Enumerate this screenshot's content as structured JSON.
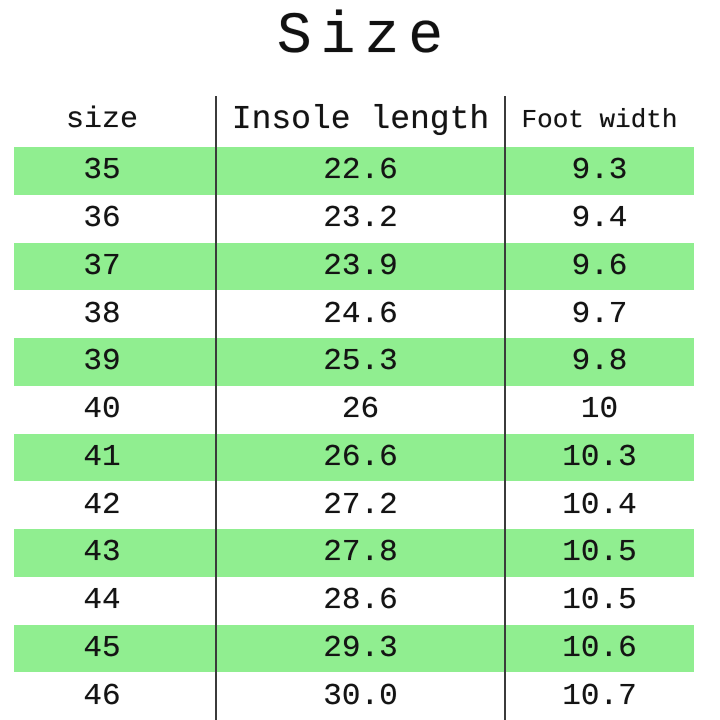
{
  "title": "Size",
  "header": {
    "size_label": "size",
    "insole_label": "Insole length",
    "foot_label": "Foot width"
  },
  "rows": [
    {
      "size": "35",
      "insole": "22.6",
      "foot": "9.3",
      "highlight": true
    },
    {
      "size": "36",
      "insole": "23.2",
      "foot": "9.4",
      "highlight": false
    },
    {
      "size": "37",
      "insole": "23.9",
      "foot": "9.6",
      "highlight": true
    },
    {
      "size": "38",
      "insole": "24.6",
      "foot": "9.7",
      "highlight": false
    },
    {
      "size": "39",
      "insole": "25.3",
      "foot": "9.8",
      "highlight": true
    },
    {
      "size": "40",
      "insole": "26",
      "foot": "10",
      "highlight": false
    },
    {
      "size": "41",
      "insole": "26.6",
      "foot": "10.3",
      "highlight": true
    },
    {
      "size": "42",
      "insole": "27.2",
      "foot": "10.4",
      "highlight": false
    },
    {
      "size": "43",
      "insole": "27.8",
      "foot": "10.5",
      "highlight": true
    },
    {
      "size": "44",
      "insole": "28.6",
      "foot": "10.5",
      "highlight": false
    },
    {
      "size": "45",
      "insole": "29.3",
      "foot": "10.6",
      "highlight": true
    },
    {
      "size": "46",
      "insole": "30.0",
      "foot": "10.7",
      "highlight": false
    }
  ],
  "colors": {
    "row_highlight": "#90ee90",
    "text": "#141414",
    "divider_line": "#3b3b3b",
    "background": "#ffffff"
  },
  "chart_data": {
    "type": "table",
    "title": "Size",
    "columns": [
      "size",
      "Insole length",
      "Foot width"
    ],
    "rows": [
      [
        "35",
        "22.6",
        "9.3"
      ],
      [
        "36",
        "23.2",
        "9.4"
      ],
      [
        "37",
        "23.9",
        "9.6"
      ],
      [
        "38",
        "24.6",
        "9.7"
      ],
      [
        "39",
        "25.3",
        "9.8"
      ],
      [
        "40",
        "26",
        "10"
      ],
      [
        "41",
        "26.6",
        "10.3"
      ],
      [
        "42",
        "27.2",
        "10.4"
      ],
      [
        "43",
        "27.8",
        "10.5"
      ],
      [
        "44",
        "28.6",
        "10.5"
      ],
      [
        "45",
        "29.3",
        "10.6"
      ],
      [
        "46",
        "30.0",
        "10.7"
      ]
    ],
    "highlighted_row_indices": [
      0,
      2,
      4,
      6,
      8,
      10
    ],
    "layout": {
      "highlight_color": "#90ee90",
      "striping": "alternating rows highlighted green, starting with first data row",
      "column_dividers": true,
      "horizontal_gridlines": false
    }
  }
}
